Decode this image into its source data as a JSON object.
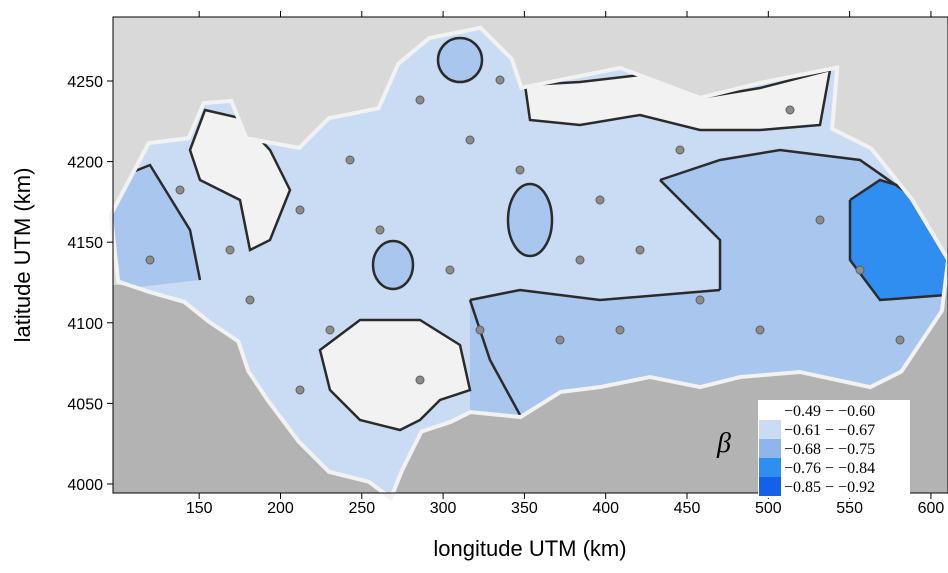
{
  "chart_data": {
    "type": "map",
    "xlabel": "longitude UTM (km)",
    "ylabel": "latitude UTM (km)",
    "xlim": [
      97,
      610.5
    ],
    "ylim": [
      3994.4,
      4289.7
    ],
    "xticks": [
      150,
      200,
      250,
      300,
      350,
      400,
      450,
      500,
      550,
      600
    ],
    "yticks": [
      4000,
      4050,
      4100,
      4150,
      4200,
      4250
    ],
    "legend_title": "β",
    "legend": [
      {
        "label": "−0.49 − −0.60",
        "color": "#ffffff"
      },
      {
        "label": "−0.61 − −0.67",
        "color": "#cadcf3"
      },
      {
        "label": "−0.68 − −0.75",
        "color": "#8fb5ea"
      },
      {
        "label": "−0.76 − −0.84",
        "color": "#2f8ef0"
      },
      {
        "label": "−0.85 − −0.92",
        "color": "#1560e8"
      }
    ]
  }
}
